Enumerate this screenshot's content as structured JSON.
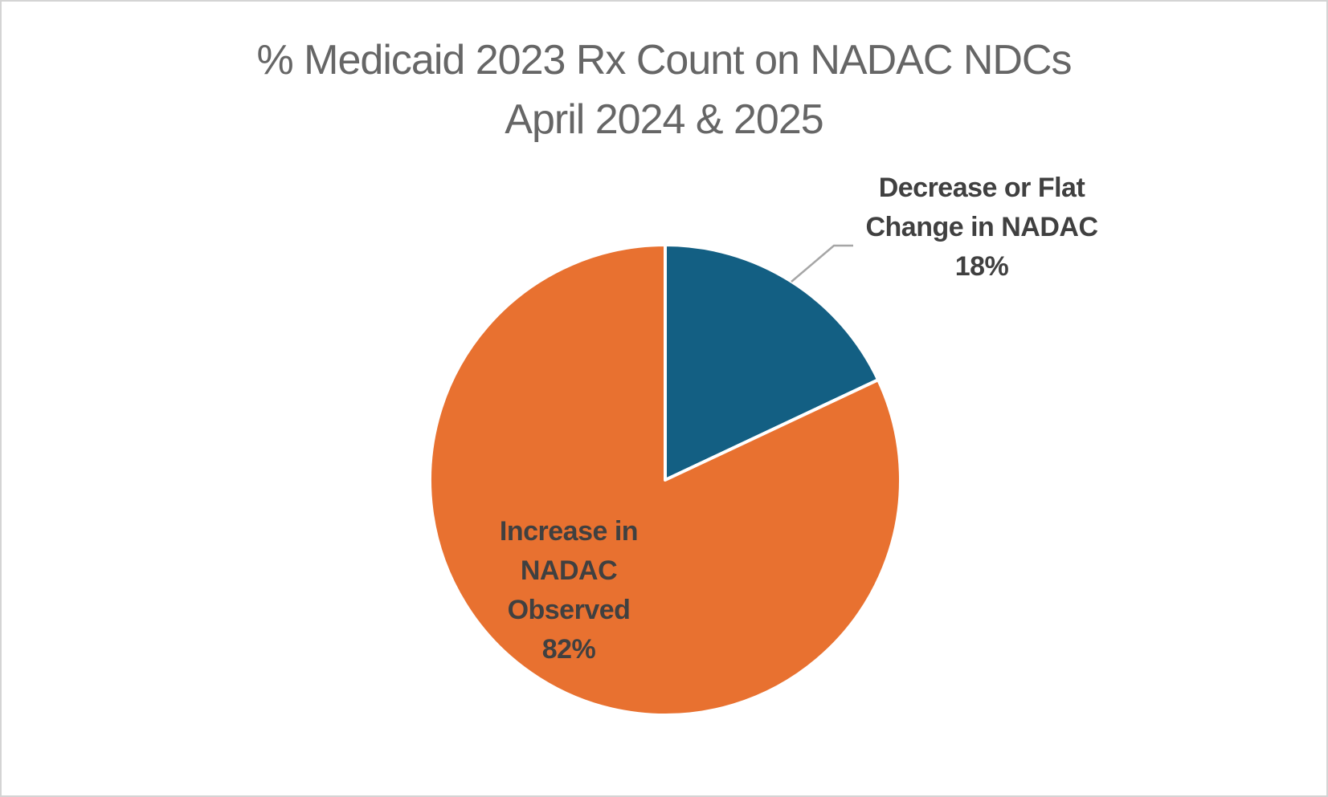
{
  "title": {
    "text": "% Medicaid 2023 Rx Count on NADAC NDCs\nApril 2024 & 2025",
    "line1": "% Medicaid 2023 Rx Count on NADAC NDCs",
    "line2": "April 2024 & 2025"
  },
  "chart_data": {
    "type": "pie",
    "title": "% Medicaid 2023 Rx Count on NADAC NDCs April 2024 & 2025",
    "start_angle_deg": 0,
    "direction": "clockwise",
    "legend": "none",
    "categories": [
      "Decrease or Flat Change in NADAC",
      "Increase in NADAC Observed"
    ],
    "values": [
      18,
      82
    ],
    "slices": [
      {
        "id": "decrease-flat-change",
        "label": "Decrease or Flat Change in NADAC",
        "value_pct": 18,
        "color": "#135F83",
        "data_label": "Decrease or Flat\nChange in NADAC\n18%"
      },
      {
        "id": "increase-observed",
        "label": "Increase in NADAC Observed",
        "value_pct": 82,
        "color": "#E87130",
        "data_label": "Increase in\nNADAC\nObserved\n82%"
      }
    ],
    "slice_border_color": "#FFFFFF",
    "leader_line_color": "#A6A6A6"
  },
  "colors": {
    "title_text": "#666666",
    "label_text": "#404040",
    "background": "#FFFFFF",
    "frame_border": "#D4D4D4"
  }
}
